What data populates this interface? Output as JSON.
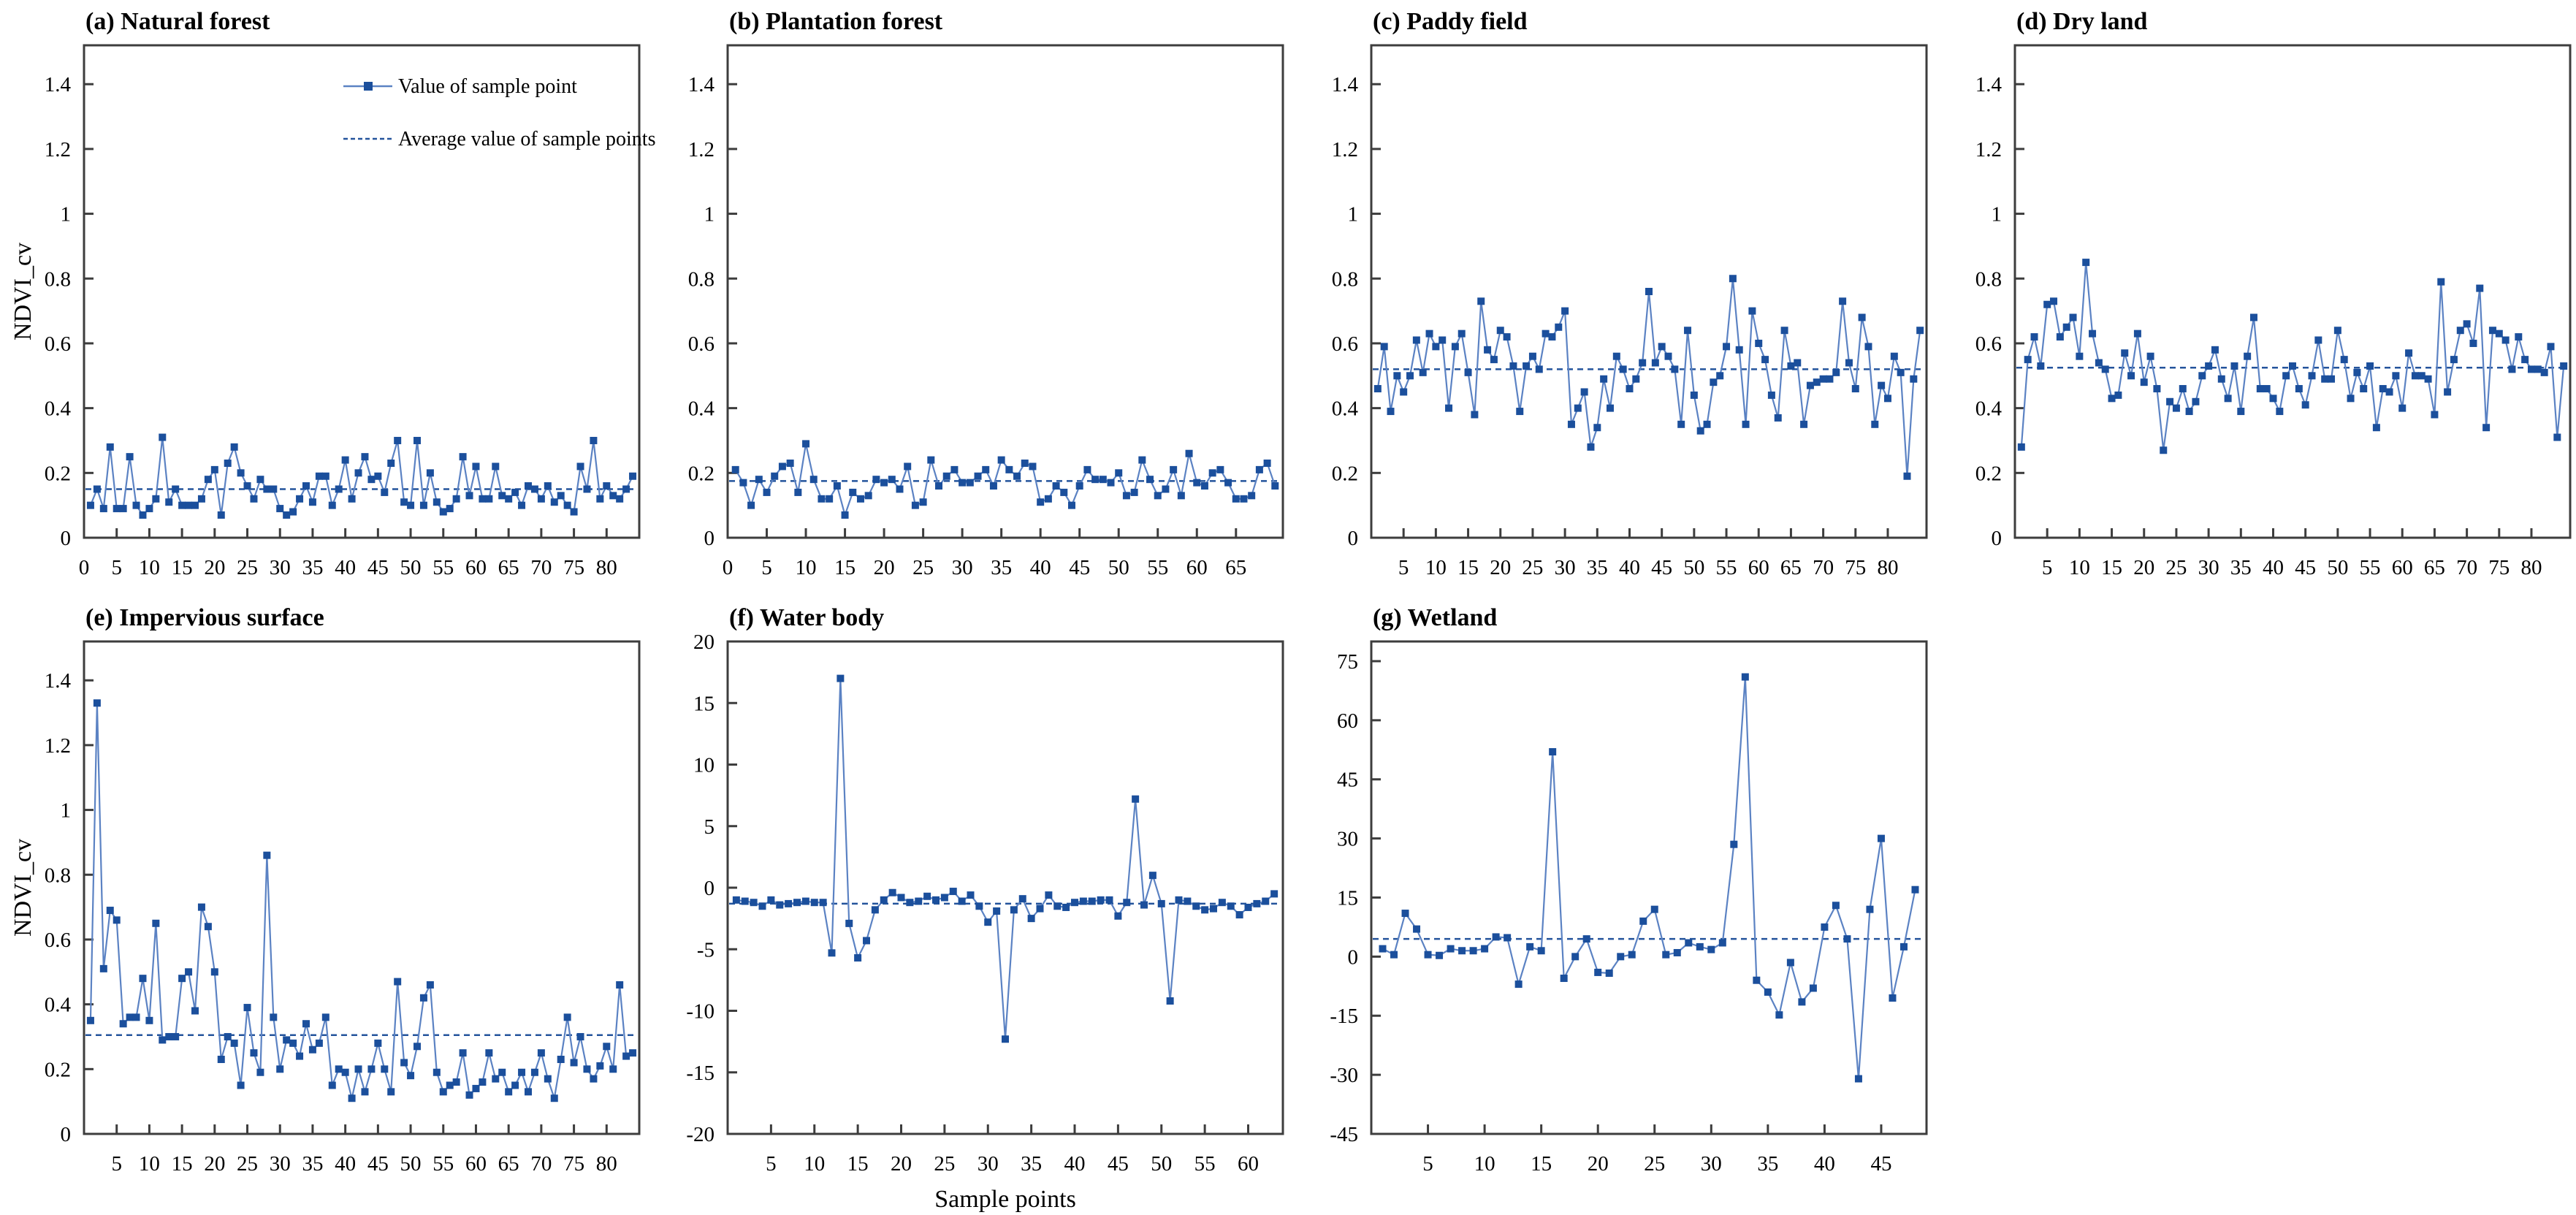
{
  "figure": {
    "xlabel": "Sample points",
    "ylabel": "NDVI_cv",
    "legend": {
      "series_label": "Value of sample point",
      "average_label": "Average value of sample points"
    },
    "colors": {
      "line": "#5b82c3",
      "marker": "#1b4f9c",
      "average": "#24549c",
      "axis": "#3d3d3d",
      "text": "#000000"
    }
  },
  "chart_data": [
    {
      "id": "a",
      "type": "line",
      "title": "(a) Natural forest",
      "row": 1,
      "show_ylabel": true,
      "show_legend": true,
      "show_xlabel": false,
      "ylim": [
        0,
        1.52
      ],
      "yticks": [
        0,
        0.2,
        0.4,
        0.6,
        0.8,
        1,
        1.2,
        1.4
      ],
      "ytick_labels": [
        "0",
        "0.2",
        "0.4",
        "0.6",
        "0.8",
        "1",
        "1.2",
        "1.4"
      ],
      "xticks": [
        0,
        5,
        10,
        15,
        20,
        25,
        30,
        35,
        40,
        45,
        50,
        55,
        60,
        65,
        70,
        75,
        80
      ],
      "xmax": 85,
      "average": 0.15,
      "values": [
        0.1,
        0.15,
        0.09,
        0.28,
        0.09,
        0.09,
        0.25,
        0.1,
        0.07,
        0.09,
        0.12,
        0.31,
        0.11,
        0.15,
        0.1,
        0.1,
        0.1,
        0.12,
        0.18,
        0.21,
        0.07,
        0.23,
        0.28,
        0.2,
        0.16,
        0.12,
        0.18,
        0.15,
        0.15,
        0.09,
        0.07,
        0.08,
        0.12,
        0.16,
        0.11,
        0.19,
        0.19,
        0.1,
        0.15,
        0.24,
        0.12,
        0.2,
        0.25,
        0.18,
        0.19,
        0.14,
        0.23,
        0.3,
        0.11,
        0.1,
        0.3,
        0.1,
        0.2,
        0.11,
        0.08,
        0.09,
        0.12,
        0.25,
        0.13,
        0.22,
        0.12,
        0.12,
        0.22,
        0.13,
        0.12,
        0.14,
        0.1,
        0.16,
        0.15,
        0.12,
        0.16,
        0.11,
        0.13,
        0.1,
        0.08,
        0.22,
        0.15,
        0.3,
        0.12,
        0.16,
        0.13,
        0.12,
        0.15,
        0.19
      ]
    },
    {
      "id": "b",
      "type": "line",
      "title": "(b) Plantation forest",
      "row": 1,
      "show_ylabel": false,
      "show_legend": false,
      "show_xlabel": false,
      "ylim": [
        0,
        1.52
      ],
      "yticks": [
        0,
        0.2,
        0.4,
        0.6,
        0.8,
        1,
        1.2,
        1.4
      ],
      "ytick_labels": [
        "0",
        "0.2",
        "0.4",
        "0.6",
        "0.8",
        "1",
        "1.2",
        "1.4"
      ],
      "xticks": [
        0,
        5,
        10,
        15,
        20,
        25,
        30,
        35,
        40,
        45,
        50,
        55,
        60,
        65
      ],
      "xmax": 71,
      "average": 0.175,
      "values": [
        0.21,
        0.17,
        0.1,
        0.18,
        0.14,
        0.19,
        0.22,
        0.23,
        0.14,
        0.29,
        0.18,
        0.12,
        0.12,
        0.16,
        0.07,
        0.14,
        0.12,
        0.13,
        0.18,
        0.17,
        0.18,
        0.15,
        0.22,
        0.1,
        0.11,
        0.24,
        0.16,
        0.19,
        0.21,
        0.17,
        0.17,
        0.19,
        0.21,
        0.16,
        0.24,
        0.21,
        0.19,
        0.23,
        0.22,
        0.11,
        0.12,
        0.16,
        0.14,
        0.1,
        0.16,
        0.21,
        0.18,
        0.18,
        0.17,
        0.2,
        0.13,
        0.14,
        0.24,
        0.18,
        0.13,
        0.15,
        0.21,
        0.13,
        0.26,
        0.17,
        0.16,
        0.2,
        0.21,
        0.17,
        0.12,
        0.12,
        0.13,
        0.21,
        0.23,
        0.16
      ]
    },
    {
      "id": "c",
      "type": "line",
      "title": "(c) Paddy field",
      "row": 1,
      "show_ylabel": false,
      "show_legend": false,
      "show_xlabel": false,
      "ylim": [
        0,
        1.52
      ],
      "yticks": [
        0,
        0.2,
        0.4,
        0.6,
        0.8,
        1,
        1.2,
        1.4
      ],
      "ytick_labels": [
        "0",
        "0.2",
        "0.4",
        "0.6",
        "0.8",
        "1",
        "1.2",
        "1.4"
      ],
      "xticks": [
        5,
        10,
        15,
        20,
        25,
        30,
        35,
        40,
        45,
        50,
        55,
        60,
        65,
        70,
        75,
        80
      ],
      "xmax": 86,
      "average": 0.52,
      "values": [
        0.46,
        0.59,
        0.39,
        0.5,
        0.45,
        0.5,
        0.61,
        0.51,
        0.63,
        0.59,
        0.61,
        0.4,
        0.59,
        0.63,
        0.51,
        0.38,
        0.73,
        0.58,
        0.55,
        0.64,
        0.62,
        0.53,
        0.39,
        0.53,
        0.56,
        0.52,
        0.63,
        0.62,
        0.65,
        0.7,
        0.35,
        0.4,
        0.45,
        0.28,
        0.34,
        0.49,
        0.4,
        0.56,
        0.52,
        0.46,
        0.49,
        0.54,
        0.76,
        0.54,
        0.59,
        0.56,
        0.52,
        0.35,
        0.64,
        0.44,
        0.33,
        0.35,
        0.48,
        0.5,
        0.59,
        0.8,
        0.58,
        0.35,
        0.7,
        0.6,
        0.55,
        0.44,
        0.37,
        0.64,
        0.53,
        0.54,
        0.35,
        0.47,
        0.48,
        0.49,
        0.49,
        0.51,
        0.73,
        0.54,
        0.46,
        0.68,
        0.59,
        0.35,
        0.47,
        0.43,
        0.56,
        0.51,
        0.19,
        0.49,
        0.64
      ]
    },
    {
      "id": "d",
      "type": "line",
      "title": "(d) Dry land",
      "row": 1,
      "show_ylabel": false,
      "show_legend": false,
      "show_xlabel": false,
      "ylim": [
        0,
        1.52
      ],
      "yticks": [
        0,
        0.2,
        0.4,
        0.6,
        0.8,
        1,
        1.2,
        1.4
      ],
      "ytick_labels": [
        "0",
        "0.2",
        "0.4",
        "0.6",
        "0.8",
        "1",
        "1.2",
        "1.4"
      ],
      "xticks": [
        5,
        10,
        15,
        20,
        25,
        30,
        35,
        40,
        45,
        50,
        55,
        60,
        65,
        70,
        75,
        80
      ],
      "xmax": 86,
      "average": 0.525,
      "values": [
        0.28,
        0.55,
        0.62,
        0.53,
        0.72,
        0.73,
        0.62,
        0.65,
        0.68,
        0.56,
        0.85,
        0.63,
        0.54,
        0.52,
        0.43,
        0.44,
        0.57,
        0.5,
        0.63,
        0.48,
        0.56,
        0.46,
        0.27,
        0.42,
        0.4,
        0.46,
        0.39,
        0.42,
        0.5,
        0.53,
        0.58,
        0.49,
        0.43,
        0.53,
        0.39,
        0.56,
        0.68,
        0.46,
        0.46,
        0.43,
        0.39,
        0.5,
        0.53,
        0.46,
        0.41,
        0.5,
        0.61,
        0.49,
        0.49,
        0.64,
        0.55,
        0.43,
        0.51,
        0.46,
        0.53,
        0.34,
        0.46,
        0.45,
        0.5,
        0.4,
        0.57,
        0.5,
        0.5,
        0.49,
        0.38,
        0.79,
        0.45,
        0.55,
        0.64,
        0.66,
        0.6,
        0.77,
        0.34,
        0.64,
        0.63,
        0.61,
        0.52,
        0.62,
        0.55,
        0.52,
        0.52,
        0.51,
        0.59,
        0.31,
        0.53
      ]
    },
    {
      "id": "e",
      "type": "line",
      "title": "(e) Impervious surface",
      "row": 2,
      "show_ylabel": true,
      "show_legend": false,
      "show_xlabel": false,
      "ylim": [
        0,
        1.52
      ],
      "yticks": [
        0,
        0.2,
        0.4,
        0.6,
        0.8,
        1,
        1.2,
        1.4
      ],
      "ytick_labels": [
        "0",
        "0.2",
        "0.4",
        "0.6",
        "0.8",
        "1",
        "1.2",
        "1.4"
      ],
      "xticks": [
        5,
        10,
        15,
        20,
        25,
        30,
        35,
        40,
        45,
        50,
        55,
        60,
        65,
        70,
        75,
        80
      ],
      "xmax": 85,
      "average": 0.305,
      "values": [
        0.35,
        1.33,
        0.51,
        0.69,
        0.66,
        0.34,
        0.36,
        0.36,
        0.48,
        0.35,
        0.65,
        0.29,
        0.3,
        0.3,
        0.48,
        0.5,
        0.38,
        0.7,
        0.64,
        0.5,
        0.23,
        0.3,
        0.28,
        0.15,
        0.39,
        0.25,
        0.19,
        0.86,
        0.36,
        0.2,
        0.29,
        0.28,
        0.24,
        0.34,
        0.26,
        0.28,
        0.36,
        0.15,
        0.2,
        0.19,
        0.11,
        0.2,
        0.13,
        0.2,
        0.28,
        0.2,
        0.13,
        0.47,
        0.22,
        0.18,
        0.27,
        0.42,
        0.46,
        0.19,
        0.13,
        0.15,
        0.16,
        0.25,
        0.12,
        0.14,
        0.16,
        0.25,
        0.17,
        0.19,
        0.13,
        0.15,
        0.19,
        0.13,
        0.19,
        0.25,
        0.17,
        0.11,
        0.23,
        0.36,
        0.22,
        0.3,
        0.2,
        0.17,
        0.21,
        0.27,
        0.2,
        0.46,
        0.24,
        0.25
      ]
    },
    {
      "id": "f",
      "type": "line",
      "title": "(f) Water body",
      "row": 2,
      "show_ylabel": false,
      "show_legend": false,
      "show_xlabel": true,
      "ylim": [
        -20,
        20
      ],
      "yticks": [
        -20,
        -15,
        -10,
        -5,
        0,
        5,
        10,
        15,
        20
      ],
      "ytick_labels": [
        "-20",
        "-15",
        "-10",
        "-5",
        "0",
        "5",
        "10",
        "15",
        "20"
      ],
      "xticks": [
        5,
        10,
        15,
        20,
        25,
        30,
        35,
        40,
        45,
        50,
        55,
        60
      ],
      "xmax": 64,
      "average": -1.3,
      "values": [
        -1.0,
        -1.1,
        -1.2,
        -1.5,
        -1.0,
        -1.4,
        -1.3,
        -1.2,
        -1.1,
        -1.2,
        -1.2,
        -5.3,
        17.0,
        -2.9,
        -5.7,
        -4.3,
        -1.8,
        -1.0,
        -0.4,
        -0.8,
        -1.2,
        -1.1,
        -0.7,
        -1.0,
        -0.8,
        -0.3,
        -1.1,
        -0.6,
        -1.5,
        -2.8,
        -1.9,
        -12.3,
        -1.8,
        -0.9,
        -2.5,
        -1.7,
        -0.6,
        -1.5,
        -1.6,
        -1.2,
        -1.1,
        -1.1,
        -1.0,
        -1.0,
        -2.3,
        -1.2,
        7.2,
        -1.4,
        1.0,
        -1.3,
        -9.2,
        -1.0,
        -1.1,
        -1.5,
        -1.8,
        -1.7,
        -1.2,
        -1.5,
        -2.2,
        -1.6,
        -1.3,
        -1.1,
        -0.5
      ]
    },
    {
      "id": "g",
      "type": "line",
      "title": "(g) Wetland",
      "row": 2,
      "show_ylabel": false,
      "show_legend": false,
      "show_xlabel": false,
      "ylim": [
        -45,
        80
      ],
      "yticks": [
        -45,
        -30,
        -15,
        0,
        15,
        30,
        45,
        60,
        75
      ],
      "ytick_labels": [
        "-45",
        "-30",
        "-15",
        "0",
        "15",
        "30",
        "45",
        "60",
        "75"
      ],
      "xticks": [
        5,
        10,
        15,
        20,
        25,
        30,
        35,
        40,
        45
      ],
      "xmax": 49,
      "average": 4.5,
      "values": [
        2,
        0.5,
        11,
        7,
        0.5,
        0.3,
        2,
        1.5,
        1.5,
        2,
        5,
        4.8,
        -7,
        2.5,
        1.5,
        52,
        -5.5,
        0,
        4.5,
        -4,
        -4.2,
        0,
        0.5,
        9,
        12,
        0.5,
        1,
        3.5,
        2.5,
        1.8,
        3.5,
        28.5,
        71,
        -6,
        -9,
        -14.8,
        -1.5,
        -11.5,
        -8,
        7.5,
        13,
        4.5,
        -31,
        12,
        30,
        -10.5,
        2.5,
        17
      ]
    }
  ]
}
